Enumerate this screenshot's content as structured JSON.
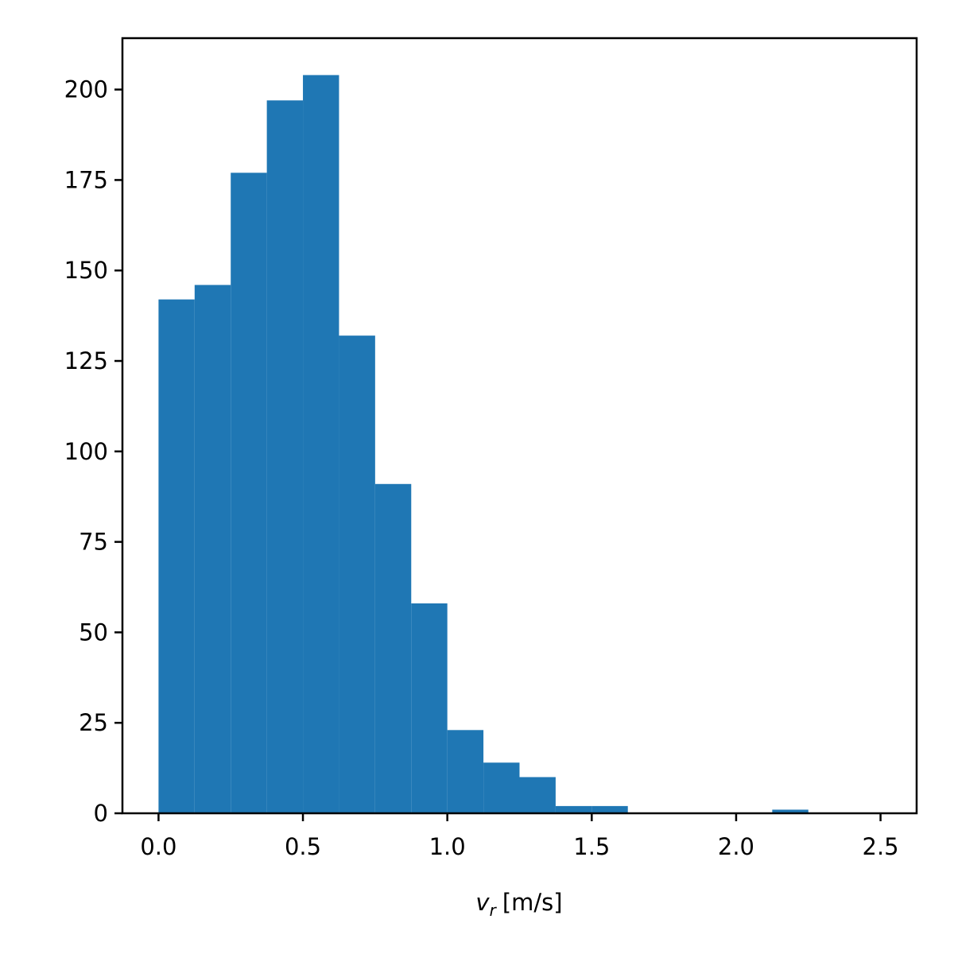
{
  "chart_data": {
    "type": "histogram",
    "xlabel": {
      "symbol": "v",
      "subscript": "r",
      "unit": "[m/s]"
    },
    "bins": [
      0,
      0.125,
      0.25,
      0.375,
      0.5,
      0.625,
      0.75,
      0.875,
      1,
      1.125,
      1.25,
      1.375,
      1.5,
      1.625,
      1.75,
      1.875,
      2,
      2.125,
      2.25,
      2.375,
      2.5
    ],
    "values": [
      142,
      146,
      177,
      197,
      204,
      132,
      91,
      58,
      23,
      14,
      10,
      2,
      2,
      0,
      0,
      0,
      0,
      1,
      0,
      0
    ],
    "color": "#1f77b4",
    "xlim": [
      -0.125,
      2.625
    ],
    "ylim": [
      0,
      214.2
    ],
    "xticks": [
      {
        "value": 0,
        "label": "0.0"
      },
      0.5,
      {
        "value": 1,
        "label": "1.0"
      },
      1.5,
      {
        "value": 2,
        "label": "2.0"
      },
      2.5
    ],
    "yticks": [
      0,
      25,
      50,
      75,
      100,
      125,
      150,
      175,
      200
    ],
    "grid": false
  }
}
